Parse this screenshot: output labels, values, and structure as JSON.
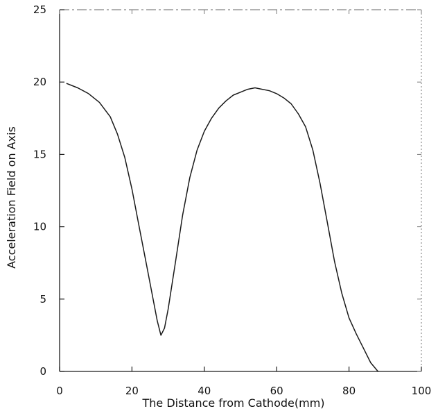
{
  "chart_data": {
    "type": "line",
    "title": "",
    "xlabel": "The Distance from Cathode(mm)",
    "ylabel": "Acceleration Field on Axis",
    "xlim": [
      0,
      100
    ],
    "ylim": [
      0,
      25
    ],
    "xticks": [
      "0",
      "20",
      "40",
      "60",
      "80",
      "100"
    ],
    "yticks": [
      "0",
      "5",
      "10",
      "15",
      "20",
      "25"
    ],
    "grid": false,
    "legend": "none",
    "line_color": "#1a1a1a",
    "series": [
      {
        "x": [
          2,
          5,
          8,
          11,
          14,
          16,
          18,
          20,
          22,
          24,
          26,
          27,
          28,
          29,
          30,
          32,
          34,
          36,
          38,
          40,
          42,
          44,
          46,
          48,
          50,
          52,
          54,
          56,
          58,
          60,
          62,
          64,
          66,
          68,
          70,
          72,
          74,
          76,
          78,
          80,
          82,
          84,
          86,
          88
        ],
        "y": [
          19.9,
          19.6,
          19.2,
          18.6,
          17.6,
          16.4,
          14.8,
          12.6,
          10.0,
          7.4,
          4.8,
          3.5,
          2.5,
          3.0,
          4.3,
          7.5,
          10.8,
          13.4,
          15.3,
          16.6,
          17.5,
          18.2,
          18.7,
          19.1,
          19.3,
          19.5,
          19.6,
          19.5,
          19.4,
          19.2,
          18.9,
          18.5,
          17.8,
          16.9,
          15.3,
          13.0,
          10.3,
          7.6,
          5.4,
          3.7,
          2.6,
          1.6,
          0.6,
          0.0
        ]
      }
    ]
  }
}
